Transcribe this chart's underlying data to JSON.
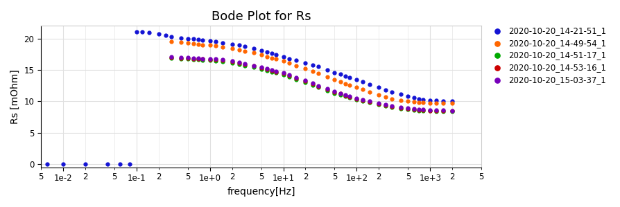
{
  "title": "Bode Plot for Rs",
  "xlabel": "frequency[Hz]",
  "ylabel": "Rs [mOhm]",
  "ylim": [
    -0.5,
    22
  ],
  "xlim": [
    0.005,
    3000
  ],
  "series": [
    {
      "label": "2020-10-20_14-21-51_1",
      "color": "#1414d4",
      "freqs": [
        0.006,
        0.01,
        0.02,
        0.04,
        0.06,
        0.08,
        0.1,
        0.12,
        0.15,
        0.2,
        0.25,
        0.3,
        0.4,
        0.5,
        0.6,
        0.7,
        0.8,
        1.0,
        1.2,
        1.5,
        2.0,
        2.5,
        3.0,
        4.0,
        5.0,
        6.0,
        7.0,
        8.0,
        10.0,
        12.0,
        15.0,
        20.0,
        25.0,
        30.0,
        40.0,
        50.0,
        60.0,
        70.0,
        80.0,
        100.0,
        120.0,
        150.0,
        200.0,
        250.0,
        300.0,
        400.0,
        500.0,
        600.0,
        700.0,
        800.0,
        1000.0,
        1200.0,
        1500.0,
        2000.0
      ],
      "values": [
        0.0,
        0.0,
        0.0,
        0.0,
        0.0,
        0.0,
        21.1,
        21.0,
        20.9,
        20.7,
        20.5,
        20.3,
        20.1,
        20.0,
        19.9,
        19.8,
        19.7,
        19.6,
        19.5,
        19.3,
        19.1,
        18.9,
        18.7,
        18.4,
        18.1,
        17.8,
        17.6,
        17.4,
        17.1,
        16.8,
        16.5,
        16.1,
        15.8,
        15.5,
        15.0,
        14.6,
        14.3,
        14.0,
        13.8,
        13.4,
        13.1,
        12.7,
        12.2,
        11.8,
        11.5,
        11.1,
        10.8,
        10.6,
        10.4,
        10.3,
        10.2,
        10.1,
        10.05,
        10.0
      ]
    },
    {
      "label": "2020-10-20_14-49-54_1",
      "color": "#ff6600",
      "freqs": [
        0.3,
        0.4,
        0.5,
        0.6,
        0.7,
        0.8,
        1.0,
        1.2,
        1.5,
        2.0,
        2.5,
        3.0,
        4.0,
        5.0,
        6.0,
        7.0,
        8.0,
        10.0,
        12.0,
        15.0,
        20.0,
        25.0,
        30.0,
        40.0,
        50.0,
        60.0,
        70.0,
        80.0,
        100.0,
        120.0,
        150.0,
        200.0,
        250.0,
        300.0,
        400.0,
        500.0,
        600.0,
        700.0,
        800.0,
        1000.0,
        1200.0,
        1500.0,
        2000.0
      ],
      "values": [
        19.5,
        19.4,
        19.3,
        19.2,
        19.1,
        19.0,
        18.9,
        18.8,
        18.6,
        18.4,
        18.2,
        18.0,
        17.7,
        17.4,
        17.1,
        16.9,
        16.7,
        16.4,
        16.1,
        15.7,
        15.2,
        14.8,
        14.4,
        13.9,
        13.5,
        13.1,
        12.8,
        12.6,
        12.2,
        11.9,
        11.5,
        11.0,
        10.7,
        10.4,
        10.2,
        10.0,
        9.9,
        9.85,
        9.8,
        9.75,
        9.7,
        9.7,
        9.7
      ]
    },
    {
      "label": "2020-10-20_14-51-17_1",
      "color": "#00aa00",
      "freqs": [
        0.3,
        0.4,
        0.5,
        0.6,
        0.7,
        0.8,
        1.0,
        1.2,
        1.5,
        2.0,
        2.5,
        3.0,
        4.0,
        5.0,
        6.0,
        7.0,
        8.0,
        10.0,
        12.0,
        15.0,
        20.0,
        25.0,
        30.0,
        40.0,
        50.0,
        60.0,
        70.0,
        80.0,
        100.0,
        120.0,
        150.0,
        200.0,
        250.0,
        300.0,
        400.0,
        500.0,
        600.0,
        700.0,
        800.0,
        1000.0,
        1200.0,
        1500.0,
        2000.0
      ],
      "values": [
        16.9,
        16.8,
        16.7,
        16.65,
        16.6,
        16.55,
        16.5,
        16.4,
        16.3,
        16.1,
        15.9,
        15.7,
        15.4,
        15.1,
        14.9,
        14.7,
        14.5,
        14.2,
        13.9,
        13.5,
        13.0,
        12.6,
        12.2,
        11.7,
        11.3,
        11.0,
        10.8,
        10.6,
        10.3,
        10.05,
        9.8,
        9.5,
        9.3,
        9.1,
        8.85,
        8.7,
        8.6,
        8.55,
        8.5,
        8.45,
        8.4,
        8.4,
        8.35
      ]
    },
    {
      "label": "2020-10-20_14-53-16_1",
      "color": "#cc0000",
      "freqs": [
        0.3,
        0.4,
        0.5,
        0.6,
        0.7,
        0.8,
        1.0,
        1.2,
        1.5,
        2.0,
        2.5,
        3.0,
        4.0,
        5.0,
        6.0,
        7.0,
        8.0,
        10.0,
        12.0,
        15.0,
        20.0,
        25.0,
        30.0,
        40.0,
        50.0,
        60.0,
        70.0,
        80.0,
        100.0,
        120.0,
        150.0,
        200.0,
        250.0,
        300.0,
        400.0,
        500.0,
        600.0,
        700.0,
        800.0,
        1000.0,
        1200.0,
        1500.0,
        2000.0
      ],
      "values": [
        17.0,
        16.9,
        16.85,
        16.8,
        16.75,
        16.7,
        16.65,
        16.6,
        16.5,
        16.3,
        16.1,
        15.9,
        15.6,
        15.3,
        15.1,
        14.9,
        14.7,
        14.4,
        14.1,
        13.7,
        13.2,
        12.8,
        12.4,
        11.9,
        11.5,
        11.2,
        10.9,
        10.7,
        10.4,
        10.15,
        9.9,
        9.6,
        9.4,
        9.2,
        8.95,
        8.8,
        8.7,
        8.65,
        8.6,
        8.55,
        8.5,
        8.5,
        8.45
      ]
    },
    {
      "label": "2020-10-20_15-03-37_1",
      "color": "#7700bb",
      "freqs": [
        0.3,
        0.4,
        0.5,
        0.6,
        0.7,
        0.8,
        1.0,
        1.2,
        1.5,
        2.0,
        2.5,
        3.0,
        4.0,
        5.0,
        6.0,
        7.0,
        8.0,
        10.0,
        12.0,
        15.0,
        20.0,
        25.0,
        30.0,
        40.0,
        50.0,
        60.0,
        70.0,
        80.0,
        100.0,
        120.0,
        150.0,
        200.0,
        250.0,
        300.0,
        400.0,
        500.0,
        600.0,
        700.0,
        800.0,
        1000.0,
        1200.0,
        1500.0,
        2000.0
      ],
      "values": [
        17.1,
        17.0,
        16.95,
        16.9,
        16.85,
        16.8,
        16.75,
        16.7,
        16.6,
        16.4,
        16.2,
        16.0,
        15.7,
        15.4,
        15.2,
        15.0,
        14.8,
        14.5,
        14.2,
        13.8,
        13.3,
        12.9,
        12.5,
        12.0,
        11.6,
        11.3,
        11.0,
        10.8,
        10.5,
        10.25,
        10.0,
        9.7,
        9.5,
        9.3,
        9.05,
        8.9,
        8.8,
        8.75,
        8.7,
        8.65,
        8.6,
        8.6,
        8.55
      ]
    }
  ],
  "yticks": [
    0,
    5,
    10,
    15,
    20
  ],
  "background_color": "#ffffff",
  "plot_bg_color": "#ffffff",
  "grid_color": "#e0e0e0",
  "title_fontsize": 13,
  "label_fontsize": 10,
  "tick_fontsize": 8.5,
  "legend_fontsize": 8.5,
  "marker_size": 3.5
}
